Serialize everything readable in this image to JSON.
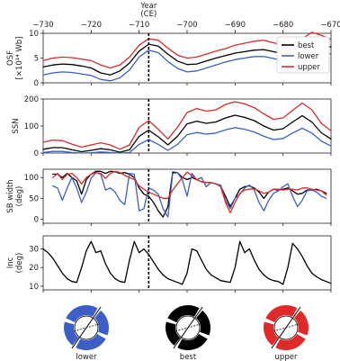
{
  "chart_data": {
    "type": "line",
    "shared_x": {
      "label_line1": "Year",
      "label_line2": "(CE)",
      "xlim": [
        -730,
        -670
      ],
      "ticks": [
        -730,
        -720,
        -710,
        -700,
        -690,
        -680,
        -670
      ],
      "tick_labels": [
        "−730",
        "−720",
        "−710",
        "−700",
        "−690",
        "−680",
        "−670"
      ],
      "marker_x": -708
    },
    "colors": {
      "best": "#000000",
      "lower": "#3b5fc7",
      "upper": "#e02a2a"
    },
    "panels": [
      {
        "id": "osf",
        "ylabel_line1": "OSF",
        "ylabel_line2": "[×10¹⁴ Wb]",
        "ylim": [
          0,
          10
        ],
        "yticks": [
          0,
          5,
          10
        ],
        "legend": {
          "placement": "top-right",
          "entries": [
            "best",
            "lower",
            "upper"
          ]
        },
        "x": [
          -730,
          -728,
          -726,
          -724,
          -722,
          -720,
          -718,
          -716,
          -714,
          -712,
          -710,
          -708,
          -706,
          -704,
          -702,
          -700,
          -698,
          -696,
          -694,
          -692,
          -690,
          -688,
          -686,
          -684,
          -682,
          -680,
          -678,
          -676,
          -674,
          -672,
          -670
        ],
        "series": [
          {
            "name": "upper",
            "key": "upper",
            "values": [
              4.5,
              5,
              5.2,
              5.1,
              4.8,
              4.5,
              3.6,
              3,
              3.6,
              5.2,
              7.6,
              8.9,
              8.6,
              7,
              5.6,
              5,
              5.2,
              5.8,
              6.4,
              6.9,
              7.6,
              8,
              8.4,
              8.6,
              8.1,
              7.6,
              7.8,
              8.9,
              10.2,
              9.6,
              8.8
            ]
          },
          {
            "name": "best",
            "key": "best",
            "values": [
              3.2,
              3.6,
              3.8,
              3.7,
              3.4,
              3,
              2,
              1.6,
              2.4,
              4,
              6.4,
              7.8,
              7.4,
              5.8,
              4.4,
              3.7,
              3.8,
              4.4,
              5,
              5.5,
              6,
              6.3,
              6.6,
              6.7,
              6.3,
              5.9,
              6,
              7,
              8.2,
              7.8,
              7.2
            ]
          },
          {
            "name": "lower",
            "key": "lower",
            "values": [
              1.6,
              2,
              2.2,
              2.1,
              1.8,
              1.5,
              0.7,
              0.4,
              1,
              2.6,
              5.2,
              6.6,
              6.1,
              4.3,
              2.9,
              2.2,
              2.4,
              3,
              3.6,
              4.2,
              4.7,
              5,
              5.3,
              5.3,
              4.9,
              4.5,
              4.6,
              5.6,
              6.8,
              6.4,
              5.8
            ]
          }
        ]
      },
      {
        "id": "ssn",
        "ylabel_line1": "SSN",
        "ylabel_line2": "",
        "ylim": [
          0,
          200
        ],
        "yticks": [
          0,
          100,
          200
        ],
        "x": [
          -730,
          -728,
          -726,
          -724,
          -722,
          -720,
          -718,
          -716,
          -714,
          -712,
          -710,
          -708,
          -706,
          -704,
          -702,
          -700,
          -698,
          -696,
          -694,
          -692,
          -690,
          -688,
          -686,
          -684,
          -682,
          -680,
          -678,
          -676,
          -674,
          -672,
          -670
        ],
        "series": [
          {
            "name": "upper",
            "key": "upper",
            "values": [
              40,
              48,
              46,
              33,
              22,
              30,
              38,
              30,
              14,
              30,
              95,
              120,
              88,
              52,
              95,
              150,
              165,
              155,
              160,
              180,
              190,
              182,
              168,
              145,
              125,
              130,
              158,
              185,
              160,
              110,
              82
            ]
          },
          {
            "name": "best",
            "key": "best",
            "values": [
              14,
              20,
              20,
              12,
              5,
              10,
              16,
              12,
              3,
              12,
              62,
              85,
              60,
              30,
              62,
              108,
              118,
              110,
              115,
              130,
              140,
              132,
              120,
              100,
              85,
              90,
              115,
              138,
              115,
              75,
              52
            ]
          },
          {
            "name": "lower",
            "key": "lower",
            "values": [
              2,
              6,
              6,
              2,
              0,
              1,
              4,
              2,
              0,
              2,
              32,
              50,
              32,
              10,
              32,
              68,
              76,
              70,
              74,
              86,
              94,
              88,
              78,
              62,
              50,
              54,
              74,
              92,
              74,
              44,
              26
            ]
          }
        ]
      },
      {
        "id": "sbw",
        "ylabel_line1": "SB width",
        "ylabel_line2": "(deg)",
        "ylim": [
          -10,
          120
        ],
        "yticks": [
          0,
          50,
          100
        ],
        "x": [
          -728,
          -727,
          -726,
          -725,
          -724,
          -723,
          -722,
          -721,
          -720,
          -719,
          -718,
          -717,
          -716,
          -715,
          -714,
          -713,
          -712,
          -711,
          -710,
          -709,
          -708,
          -707,
          -706,
          -705,
          -704,
          -703,
          -702,
          -701,
          -700,
          -699,
          -698,
          -697,
          -696,
          -695,
          -694,
          -693,
          -692,
          -691,
          -690,
          -689,
          -688,
          -687,
          -686,
          -685,
          -684,
          -683,
          -682,
          -681,
          -680,
          -679,
          -678,
          -677,
          -676,
          -675,
          -674,
          -673,
          -672,
          -671
        ],
        "series": [
          {
            "name": "best",
            "key": "best",
            "values": [
              108,
              108,
              100,
              110,
              100,
              92,
              60,
              95,
              108,
              115,
              115,
              110,
              115,
              114,
              110,
              112,
              108,
              100,
              75,
              60,
              55,
              40,
              20,
              5,
              30,
              113,
              112,
              100,
              95,
              100,
              95,
              90,
              88,
              88,
              85,
              80,
              55,
              30,
              50,
              72,
              78,
              80,
              75,
              65,
              50,
              65,
              72,
              70,
              72,
              75,
              68,
              60,
              62,
              70,
              70,
              72,
              68,
              62
            ]
          },
          {
            "name": "lower",
            "key": "lower",
            "values": [
              80,
              75,
              45,
              75,
              100,
              75,
              40,
              65,
              98,
              112,
              108,
              70,
              75,
              65,
              45,
              35,
              110,
              108,
              20,
              25,
              75,
              70,
              60,
              25,
              5,
              110,
              112,
              95,
              55,
              110,
              95,
              100,
              78,
              88,
              85,
              82,
              45,
              25,
              50,
              60,
              75,
              82,
              70,
              40,
              20,
              45,
              62,
              68,
              78,
              85,
              55,
              30,
              45,
              68,
              70,
              65,
              55,
              50
            ]
          },
          {
            "name": "upper",
            "key": "upper",
            "values": [
              100,
              110,
              95,
              108,
              110,
              100,
              85,
              100,
              108,
              112,
              110,
              98,
              110,
              115,
              112,
              105,
              100,
              95,
              80,
              72,
              65,
              60,
              55,
              50,
              50,
              70,
              85,
              100,
              113,
              105,
              95,
              90,
              88,
              88,
              85,
              78,
              40,
              15,
              40,
              62,
              70,
              72,
              73,
              68,
              62,
              65,
              72,
              72,
              70,
              72,
              72,
              70,
              75,
              75,
              72,
              70,
              68,
              58
            ]
          }
        ]
      },
      {
        "id": "inc",
        "ylabel_line1": "Inc",
        "ylabel_line2": "(deg)",
        "ylim": [
          8,
          37
        ],
        "yticks": [
          10,
          20,
          30
        ],
        "x": [
          -730,
          -729,
          -728,
          -727,
          -726,
          -725,
          -724,
          -723,
          -722,
          -721,
          -720,
          -719,
          -718,
          -717,
          -716,
          -715,
          -714,
          -713,
          -712,
          -711,
          -710,
          -709,
          -708,
          -707,
          -706,
          -705,
          -704,
          -703,
          -702,
          -701,
          -700,
          -699,
          -698,
          -697,
          -696,
          -695,
          -694,
          -693,
          -692,
          -691,
          -690,
          -689,
          -688,
          -687,
          -686,
          -685,
          -684,
          -683,
          -682,
          -681,
          -680,
          -679,
          -678,
          -677,
          -676,
          -675,
          -674,
          -673,
          -672,
          -671,
          -670
        ],
        "series": [
          {
            "name": "best",
            "key": "best",
            "values": [
              30,
              28,
              25,
              21,
              17,
              14,
              12.5,
              12,
              20,
              29,
              34,
              28,
              29,
              22,
              17,
              14,
              12.5,
              12,
              24,
              34,
              28,
              30,
              27,
              23,
              19,
              16,
              14,
              13,
              12,
              11,
              17,
              30,
              29,
              24,
              19,
              16,
              14.5,
              13,
              12.5,
              12,
              20,
              34,
              28,
              30,
              24,
              19,
              16,
              14,
              13,
              12.5,
              11,
              20,
              33,
              30,
              26,
              21,
              17,
              15,
              13.5,
              12.5,
              11.5
            ]
          }
        ]
      }
    ]
  },
  "diagrams": [
    {
      "key": "lower",
      "label": "lower"
    },
    {
      "key": "best",
      "label": "best"
    },
    {
      "key": "upper",
      "label": "upper"
    }
  ]
}
